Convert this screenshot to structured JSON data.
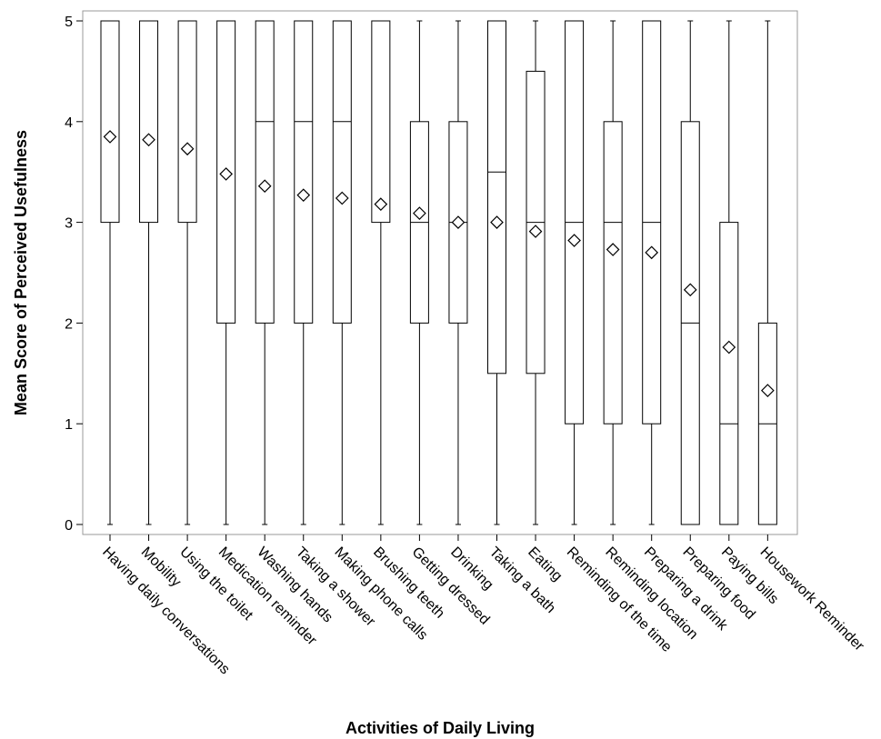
{
  "chart_data": {
    "type": "boxplot",
    "xlabel": "Activities of Daily Living",
    "ylabel": "Mean Score of Perceived Usefulness",
    "ylim": [
      0,
      5
    ],
    "yticks": [
      "0",
      "1",
      "2",
      "3",
      "4",
      "5"
    ],
    "grid": false,
    "categories": [
      "Having daily conversations",
      "Mobility",
      "Using the toilet",
      "Medication reminder",
      "Washing hands",
      "Taking a shower",
      "Making phone calls",
      "Brushing teeth",
      "Getting dressed",
      "Drinking",
      "Taking a bath",
      "Eating",
      "Reminding of the time",
      "Reminding location",
      "Preparing a drink",
      "Preparing food",
      "Paying bills",
      "Housework Reminder"
    ],
    "series": [
      {
        "min": [
          0,
          0,
          0,
          0,
          0,
          0,
          0,
          0,
          0,
          0,
          0,
          0,
          0,
          0,
          0,
          0,
          0,
          0
        ],
        "q1": [
          3,
          3,
          3,
          2,
          2,
          2,
          2,
          3,
          2,
          2,
          1.5,
          1.5,
          1,
          1,
          1,
          0,
          0,
          0
        ],
        "median": [
          5,
          5,
          5,
          5,
          4,
          4,
          4,
          5,
          3,
          3,
          3.5,
          3,
          3,
          3,
          3,
          2,
          1,
          1
        ],
        "q3": [
          5,
          5,
          5,
          5,
          5,
          5,
          5,
          5,
          4,
          4,
          5,
          4.5,
          5,
          4,
          5,
          4,
          3,
          2
        ],
        "max": [
          5,
          5,
          5,
          5,
          5,
          5,
          5,
          5,
          5,
          5,
          5,
          5,
          5,
          5,
          5,
          5,
          5,
          5
        ],
        "mean": [
          3.85,
          3.82,
          3.73,
          3.48,
          3.36,
          3.27,
          3.24,
          3.18,
          3.09,
          3.0,
          3.0,
          2.91,
          2.82,
          2.73,
          2.7,
          2.33,
          1.76,
          1.33
        ]
      }
    ]
  }
}
